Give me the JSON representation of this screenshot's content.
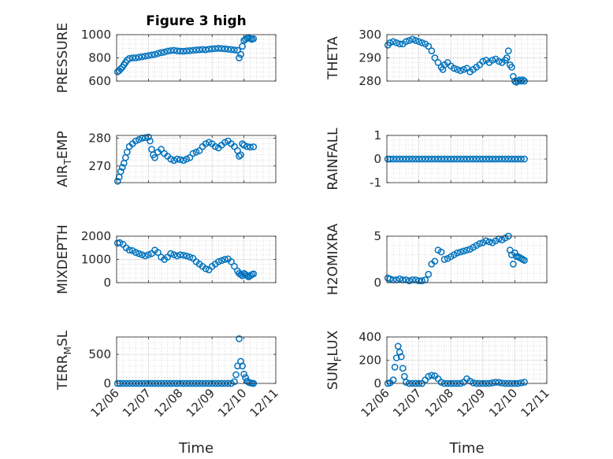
{
  "figure_title": "Figure 3 high",
  "marker_color": "#0072bd",
  "x_tick_labels": [
    "12/06",
    "12/07",
    "12/08",
    "12/09",
    "12/10",
    "12/11"
  ],
  "chart_data": [
    {
      "type": "scatter",
      "title": "Figure 3 high",
      "ylabel": "PRESSURE",
      "xlabel": "",
      "xlim": [
        0,
        5
      ],
      "ylim": [
        600,
        1000
      ],
      "yticks": [
        600,
        800,
        1000
      ],
      "grid": true,
      "x": [
        0.03,
        0.08,
        0.13,
        0.18,
        0.23,
        0.28,
        0.33,
        0.4,
        0.5,
        0.6,
        0.7,
        0.8,
        0.9,
        1.0,
        1.1,
        1.2,
        1.3,
        1.4,
        1.5,
        1.6,
        1.7,
        1.8,
        1.9,
        2.0,
        2.1,
        2.2,
        2.3,
        2.4,
        2.5,
        2.6,
        2.7,
        2.8,
        2.9,
        3.0,
        3.1,
        3.2,
        3.3,
        3.4,
        3.5,
        3.6,
        3.7,
        3.8,
        3.85,
        3.9,
        3.95,
        4.0,
        4.05,
        4.1,
        4.15,
        4.2,
        4.25,
        4.3
      ],
      "y": [
        680,
        690,
        705,
        720,
        740,
        760,
        780,
        795,
        800,
        800,
        805,
        810,
        815,
        820,
        825,
        830,
        838,
        845,
        850,
        858,
        862,
        865,
        860,
        858,
        857,
        860,
        862,
        865,
        868,
        870,
        872,
        870,
        875,
        878,
        880,
        882,
        880,
        878,
        875,
        872,
        868,
        865,
        800,
        830,
        900,
        950,
        960,
        970,
        975,
        965,
        960,
        965
      ]
    },
    {
      "type": "scatter",
      "title": "",
      "ylabel": "THETA",
      "xlabel": "",
      "xlim": [
        0,
        5
      ],
      "ylim": [
        280,
        300
      ],
      "yticks": [
        280,
        290,
        300
      ],
      "grid": true,
      "x": [
        0.03,
        0.1,
        0.2,
        0.3,
        0.4,
        0.5,
        0.6,
        0.7,
        0.8,
        0.9,
        1.0,
        1.1,
        1.2,
        1.3,
        1.4,
        1.5,
        1.6,
        1.7,
        1.75,
        1.8,
        1.9,
        2.0,
        2.1,
        2.2,
        2.3,
        2.4,
        2.5,
        2.6,
        2.7,
        2.8,
        2.9,
        3.0,
        3.1,
        3.2,
        3.3,
        3.4,
        3.5,
        3.6,
        3.7,
        3.75,
        3.8,
        3.85,
        3.9,
        3.95,
        4.0,
        4.05,
        4.1,
        4.15,
        4.2,
        4.25,
        4.3
      ],
      "y": [
        295.5,
        296.5,
        297,
        296.5,
        296,
        296,
        297,
        297.5,
        298,
        297.5,
        297,
        296.5,
        296,
        295,
        293,
        290,
        288,
        286,
        285,
        287,
        288,
        286.5,
        285.5,
        285,
        284.5,
        285,
        285.5,
        284,
        285,
        286,
        287,
        288.5,
        289,
        288,
        289,
        289.5,
        288.5,
        288,
        289,
        290,
        293,
        287,
        286,
        282,
        280,
        279.5,
        280,
        280.5,
        280,
        280.5,
        280
      ]
    },
    {
      "type": "scatter",
      "title": "",
      "ylabel": "AIR_TEMP",
      "xlabel": "",
      "xlim": [
        0,
        5
      ],
      "ylim": [
        264,
        281
      ],
      "yticks": [
        270,
        280
      ],
      "grid": true,
      "x": [
        0.03,
        0.08,
        0.13,
        0.18,
        0.23,
        0.28,
        0.33,
        0.4,
        0.5,
        0.6,
        0.7,
        0.8,
        0.9,
        1.0,
        1.05,
        1.1,
        1.15,
        1.2,
        1.3,
        1.4,
        1.5,
        1.6,
        1.7,
        1.8,
        1.9,
        2.0,
        2.1,
        2.2,
        2.3,
        2.4,
        2.5,
        2.6,
        2.7,
        2.8,
        2.9,
        3.0,
        3.1,
        3.2,
        3.3,
        3.4,
        3.5,
        3.6,
        3.7,
        3.8,
        3.85,
        3.9,
        3.95,
        4.0,
        4.1,
        4.2,
        4.3
      ],
      "y": [
        264.5,
        266,
        268,
        269.5,
        271,
        273,
        275,
        277,
        278,
        279,
        279.5,
        280,
        280.2,
        280.4,
        279,
        276,
        274,
        273,
        275,
        276,
        274.5,
        273.5,
        272.5,
        272,
        272.5,
        272.3,
        272,
        272.5,
        273,
        274.5,
        275,
        275.5,
        277,
        278,
        278.5,
        278,
        277,
        276.5,
        277.5,
        278.5,
        279,
        278,
        277,
        275.5,
        273.5,
        274,
        278,
        277.5,
        277,
        276.8,
        276.9
      ]
    },
    {
      "type": "scatter",
      "title": "",
      "ylabel": "RAINFALL",
      "xlabel": "",
      "xlim": [
        0,
        5
      ],
      "ylim": [
        -1,
        1
      ],
      "yticks": [
        -1,
        0,
        1
      ],
      "grid": true,
      "x": [
        0.03,
        0.1,
        0.2,
        0.3,
        0.4,
        0.5,
        0.6,
        0.7,
        0.8,
        0.9,
        1.0,
        1.1,
        1.2,
        1.3,
        1.4,
        1.5,
        1.6,
        1.7,
        1.8,
        1.9,
        2.0,
        2.1,
        2.2,
        2.3,
        2.4,
        2.5,
        2.6,
        2.7,
        2.8,
        2.9,
        3.0,
        3.1,
        3.2,
        3.3,
        3.4,
        3.5,
        3.6,
        3.7,
        3.8,
        3.9,
        4.0,
        4.1,
        4.2,
        4.3
      ],
      "y": [
        0,
        0,
        0,
        0,
        0,
        0,
        0,
        0,
        0,
        0,
        0,
        0,
        0,
        0,
        0,
        0,
        0,
        0,
        0,
        0,
        0,
        0,
        0,
        0,
        0,
        0,
        0,
        0,
        0,
        0,
        0,
        0,
        0,
        0,
        0,
        0,
        0,
        0,
        0,
        0,
        0,
        0,
        0,
        0
      ]
    },
    {
      "type": "scatter",
      "title": "",
      "ylabel": "MIXDEPTH",
      "xlabel": "",
      "xlim": [
        0,
        5
      ],
      "ylim": [
        0,
        2000
      ],
      "yticks": [
        0,
        1000,
        2000
      ],
      "grid": true,
      "x": [
        0.03,
        0.1,
        0.2,
        0.3,
        0.4,
        0.5,
        0.6,
        0.7,
        0.8,
        0.9,
        1.0,
        1.1,
        1.2,
        1.3,
        1.4,
        1.5,
        1.6,
        1.7,
        1.8,
        1.9,
        2.0,
        2.1,
        2.2,
        2.3,
        2.4,
        2.5,
        2.6,
        2.7,
        2.8,
        2.9,
        3.0,
        3.1,
        3.2,
        3.3,
        3.4,
        3.5,
        3.6,
        3.7,
        3.8,
        3.85,
        3.9,
        3.95,
        4.0,
        4.05,
        4.1,
        4.15,
        4.2,
        4.25,
        4.3
      ],
      "y": [
        1700,
        1720,
        1650,
        1500,
        1400,
        1380,
        1300,
        1250,
        1200,
        1150,
        1200,
        1250,
        1400,
        1300,
        1100,
        1000,
        1100,
        1250,
        1200,
        1150,
        1200,
        1180,
        1150,
        1100,
        1050,
        900,
        800,
        700,
        600,
        550,
        700,
        800,
        900,
        950,
        1000,
        1020,
        900,
        700,
        500,
        400,
        350,
        300,
        400,
        350,
        300,
        250,
        300,
        350,
        380
      ]
    },
    {
      "type": "scatter",
      "title": "",
      "ylabel": "H2OMIXRA",
      "xlabel": "",
      "xlim": [
        0,
        5
      ],
      "ylim": [
        0,
        5
      ],
      "yticks": [
        0,
        5
      ],
      "grid": true,
      "x": [
        0.03,
        0.1,
        0.2,
        0.3,
        0.4,
        0.5,
        0.6,
        0.7,
        0.8,
        0.9,
        1.0,
        1.1,
        1.2,
        1.3,
        1.4,
        1.5,
        1.6,
        1.7,
        1.8,
        1.9,
        2.0,
        2.1,
        2.2,
        2.3,
        2.4,
        2.5,
        2.6,
        2.7,
        2.8,
        2.9,
        3.0,
        3.1,
        3.2,
        3.3,
        3.4,
        3.5,
        3.6,
        3.7,
        3.8,
        3.85,
        3.9,
        3.95,
        4.0,
        4.05,
        4.1,
        4.15,
        4.2,
        4.25,
        4.3
      ],
      "y": [
        0.5,
        0.4,
        0.3,
        0.3,
        0.4,
        0.3,
        0.3,
        0.2,
        0.3,
        0.3,
        0.2,
        0.2,
        0.3,
        0.9,
        2.0,
        2.3,
        3.5,
        3.3,
        2.5,
        2.6,
        2.8,
        3.0,
        3.2,
        3.3,
        3.4,
        3.5,
        3.6,
        3.8,
        4.0,
        4.2,
        4.3,
        4.5,
        4.4,
        4.3,
        4.5,
        4.7,
        4.6,
        4.8,
        5.0,
        3.5,
        3.0,
        2.0,
        3.2,
        2.8,
        2.8,
        2.7,
        2.6,
        2.5,
        2.4
      ]
    },
    {
      "type": "scatter",
      "title": "",
      "ylabel": "TERR_MSL",
      "xlabel": "Time",
      "xlim": [
        0,
        5
      ],
      "ylim": [
        0,
        800
      ],
      "yticks": [
        0,
        500
      ],
      "grid": true,
      "x": [
        0.03,
        0.1,
        0.2,
        0.3,
        0.4,
        0.5,
        0.6,
        0.7,
        0.8,
        0.9,
        1.0,
        1.1,
        1.2,
        1.3,
        1.4,
        1.5,
        1.6,
        1.7,
        1.8,
        1.9,
        2.0,
        2.1,
        2.2,
        2.3,
        2.4,
        2.5,
        2.6,
        2.7,
        2.8,
        2.9,
        3.0,
        3.1,
        3.2,
        3.3,
        3.4,
        3.5,
        3.6,
        3.7,
        3.75,
        3.8,
        3.85,
        3.9,
        3.95,
        4.0,
        4.05,
        4.1,
        4.15,
        4.2,
        4.25,
        4.3
      ],
      "y": [
        0,
        0,
        0,
        0,
        0,
        0,
        0,
        0,
        0,
        0,
        0,
        0,
        0,
        0,
        0,
        0,
        0,
        0,
        0,
        0,
        0,
        0,
        0,
        0,
        0,
        0,
        0,
        0,
        0,
        0,
        0,
        0,
        0,
        0,
        0,
        0,
        0,
        30,
        150,
        300,
        770,
        380,
        300,
        160,
        100,
        40,
        20,
        10,
        5,
        0
      ]
    },
    {
      "type": "scatter",
      "title": "",
      "ylabel": "SUN_FLUX",
      "xlabel": "Time",
      "xlim": [
        0,
        5
      ],
      "ylim": [
        0,
        400
      ],
      "yticks": [
        0,
        200,
        400
      ],
      "grid": true,
      "x": [
        0.03,
        0.1,
        0.2,
        0.25,
        0.3,
        0.35,
        0.4,
        0.45,
        0.5,
        0.55,
        0.6,
        0.7,
        0.8,
        0.9,
        1.0,
        1.1,
        1.2,
        1.3,
        1.4,
        1.5,
        1.6,
        1.7,
        1.8,
        1.9,
        2.0,
        2.1,
        2.2,
        2.3,
        2.4,
        2.5,
        2.6,
        2.7,
        2.8,
        2.9,
        3.0,
        3.1,
        3.2,
        3.3,
        3.4,
        3.5,
        3.6,
        3.7,
        3.8,
        3.9,
        4.0,
        4.1,
        4.2,
        4.3
      ],
      "y": [
        0,
        5,
        30,
        140,
        220,
        320,
        270,
        230,
        130,
        60,
        10,
        0,
        0,
        0,
        0,
        0,
        30,
        60,
        70,
        65,
        40,
        10,
        0,
        0,
        0,
        0,
        0,
        0,
        10,
        40,
        20,
        5,
        0,
        0,
        0,
        0,
        0,
        5,
        10,
        8,
        3,
        0,
        0,
        0,
        0,
        0,
        5,
        10
      ]
    }
  ]
}
